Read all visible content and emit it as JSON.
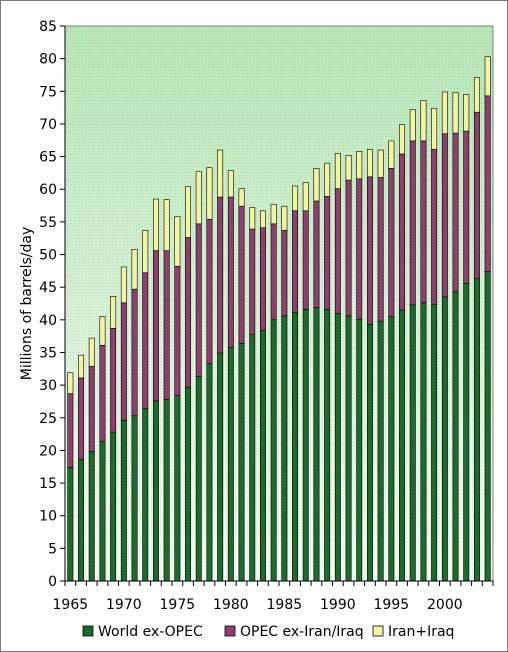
{
  "chart_data": {
    "type": "bar",
    "stacked": true,
    "title": "",
    "xlabel": "",
    "ylabel": "Millions of barrels/day",
    "ylim": [
      0,
      85
    ],
    "yticks": [
      0,
      5,
      10,
      15,
      20,
      25,
      30,
      35,
      40,
      45,
      50,
      55,
      60,
      65,
      70,
      75,
      80,
      85
    ],
    "xticks": [
      "1965",
      "1970",
      "1975",
      "1980",
      "1985",
      "1990",
      "1995",
      "2000"
    ],
    "grid": false,
    "legend": "bottom",
    "categories": [
      1965,
      1966,
      1967,
      1968,
      1969,
      1970,
      1971,
      1972,
      1973,
      1974,
      1975,
      1976,
      1977,
      1978,
      1979,
      1980,
      1981,
      1982,
      1983,
      1984,
      1985,
      1986,
      1987,
      1988,
      1989,
      1990,
      1991,
      1992,
      1993,
      1994,
      1995,
      1996,
      1997,
      1998,
      1999,
      2000,
      2001,
      2002,
      2003,
      2004
    ],
    "series": [
      {
        "name": "World ex-OPEC",
        "color": "#1c6b2a",
        "values": [
          17.4,
          18.6,
          19.8,
          21.4,
          22.8,
          24.6,
          25.3,
          26.4,
          27.6,
          27.8,
          28.4,
          29.7,
          31.3,
          33.3,
          34.9,
          35.8,
          36.4,
          37.8,
          38.4,
          40.0,
          40.6,
          41.1,
          41.6,
          41.9,
          41.6,
          41.0,
          40.6,
          40.1,
          39.3,
          39.8,
          40.5,
          41.5,
          42.3,
          42.6,
          42.4,
          43.5,
          44.3,
          45.6,
          46.3,
          47.4
        ]
      },
      {
        "name": "OPEC ex-Iran/Iraq",
        "color": "#8e3f6e",
        "values": [
          11.3,
          12.5,
          13.1,
          14.7,
          15.9,
          18.0,
          19.4,
          20.8,
          23.0,
          22.8,
          19.8,
          22.9,
          23.4,
          22.1,
          23.9,
          23.0,
          21.0,
          16.1,
          15.7,
          14.7,
          13.1,
          15.6,
          15.1,
          16.3,
          17.3,
          19.1,
          20.8,
          21.5,
          22.6,
          22.0,
          22.7,
          23.9,
          25.1,
          24.8,
          23.7,
          25.0,
          24.3,
          23.3,
          25.5,
          26.9
        ]
      },
      {
        "name": "Iran+Iraq",
        "color": "#f3f3a0",
        "values": [
          3.2,
          3.5,
          4.3,
          4.4,
          4.9,
          5.5,
          6.1,
          6.5,
          7.9,
          7.8,
          7.6,
          7.8,
          8.0,
          7.9,
          7.2,
          4.1,
          2.7,
          3.3,
          2.6,
          3.0,
          3.7,
          3.8,
          4.3,
          5.0,
          5.1,
          5.4,
          3.8,
          4.2,
          4.2,
          4.2,
          4.2,
          4.5,
          4.8,
          6.2,
          6.3,
          6.4,
          6.2,
          5.6,
          5.3,
          6.0
        ]
      }
    ]
  }
}
